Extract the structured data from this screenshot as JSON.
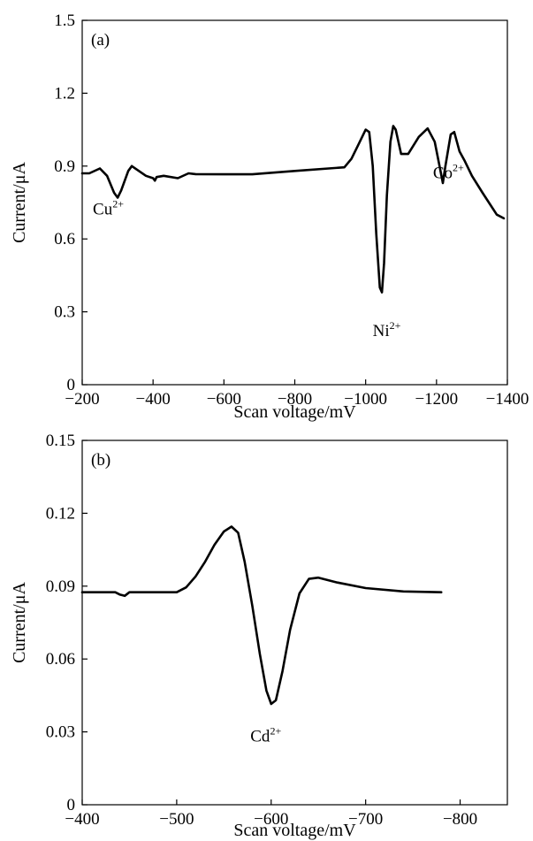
{
  "chart_data": [
    {
      "type": "line",
      "panel_label": "(a)",
      "xlabel": "Scan voltage/mV",
      "ylabel": "Current/μA",
      "xlim": [
        -200,
        -1400
      ],
      "ylim": [
        0,
        1.5
      ],
      "xticks": [
        -200,
        -400,
        -600,
        -800,
        -1000,
        -1200,
        -1400
      ],
      "xtick_labels": [
        "−200",
        "−400",
        "−600",
        "−800",
        "−1000",
        "−1200",
        "−1400"
      ],
      "yticks": [
        0,
        0.3,
        0.6,
        0.9,
        1.2,
        1.5
      ],
      "ytick_labels": [
        "0",
        "0.3",
        "0.6",
        "0.9",
        "1.2",
        "1.5"
      ],
      "grid": false,
      "series": [
        {
          "x": [
            -200,
            -220,
            -250,
            -270,
            -290,
            -300,
            -310,
            -330,
            -340,
            -360,
            -380,
            -400,
            -405,
            -410,
            -430,
            -470,
            -500,
            -520,
            -600,
            -680,
            -800,
            -940,
            -960,
            -980,
            -1000,
            -1010,
            -1020,
            -1030,
            -1040,
            -1046,
            -1052,
            -1060,
            -1070,
            -1078,
            -1085,
            -1100,
            -1120,
            -1150,
            -1175,
            -1195,
            -1210,
            -1218,
            -1225,
            -1240,
            -1250,
            -1265,
            -1280,
            -1300,
            -1330,
            -1370,
            -1390
          ],
          "y": [
            0.87,
            0.87,
            0.89,
            0.86,
            0.79,
            0.77,
            0.8,
            0.88,
            0.9,
            0.88,
            0.86,
            0.85,
            0.84,
            0.855,
            0.86,
            0.85,
            0.87,
            0.867,
            0.866,
            0.866,
            0.88,
            0.895,
            0.93,
            0.99,
            1.05,
            1.04,
            0.9,
            0.62,
            0.4,
            0.38,
            0.5,
            0.78,
            1.0,
            1.065,
            1.05,
            0.95,
            0.95,
            1.02,
            1.055,
            1.0,
            0.89,
            0.83,
            0.9,
            1.03,
            1.04,
            0.96,
            0.92,
            0.86,
            0.79,
            0.7,
            0.685
          ]
        }
      ],
      "annotations": [
        {
          "text": "Cu",
          "sup": "2+",
          "x": -230,
          "y": 0.7
        },
        {
          "text": "Ni",
          "sup": "2+",
          "x": -1020,
          "y": 0.2
        },
        {
          "text": "Co",
          "sup": "2+",
          "x": -1190,
          "y": 0.85
        }
      ]
    },
    {
      "type": "line",
      "panel_label": "(b)",
      "xlabel": "Scan voltage/mV",
      "ylabel": "Current/μA",
      "xlim": [
        -400,
        -850
      ],
      "ylim": [
        0,
        0.15
      ],
      "xticks": [
        -400,
        -500,
        -600,
        -700,
        -800
      ],
      "xtick_labels": [
        "−400",
        "−500",
        "−600",
        "−700",
        "−800"
      ],
      "yticks": [
        0,
        0.03,
        0.06,
        0.09,
        0.12,
        0.15
      ],
      "ytick_labels": [
        "0",
        "0.03",
        "0.06",
        "0.09",
        "0.12",
        "0.15"
      ],
      "grid": false,
      "series": [
        {
          "x": [
            -400,
            -435,
            -440,
            -445,
            -450,
            -500,
            -510,
            -520,
            -530,
            -540,
            -550,
            -558,
            -565,
            -572,
            -580,
            -588,
            -595,
            -600,
            -605,
            -612,
            -620,
            -630,
            -640,
            -650,
            -670,
            -700,
            -740,
            -780
          ],
          "y": [
            0.0875,
            0.0875,
            0.0865,
            0.086,
            0.0875,
            0.0875,
            0.0895,
            0.094,
            0.1,
            0.107,
            0.1125,
            0.1145,
            0.112,
            0.1,
            0.082,
            0.062,
            0.047,
            0.0415,
            0.043,
            0.055,
            0.072,
            0.087,
            0.093,
            0.0935,
            0.0915,
            0.0892,
            0.0878,
            0.0875
          ]
        }
      ],
      "annotations": [
        {
          "text": "Cd",
          "sup": "2+",
          "x": -578,
          "y": 0.026
        }
      ]
    }
  ]
}
